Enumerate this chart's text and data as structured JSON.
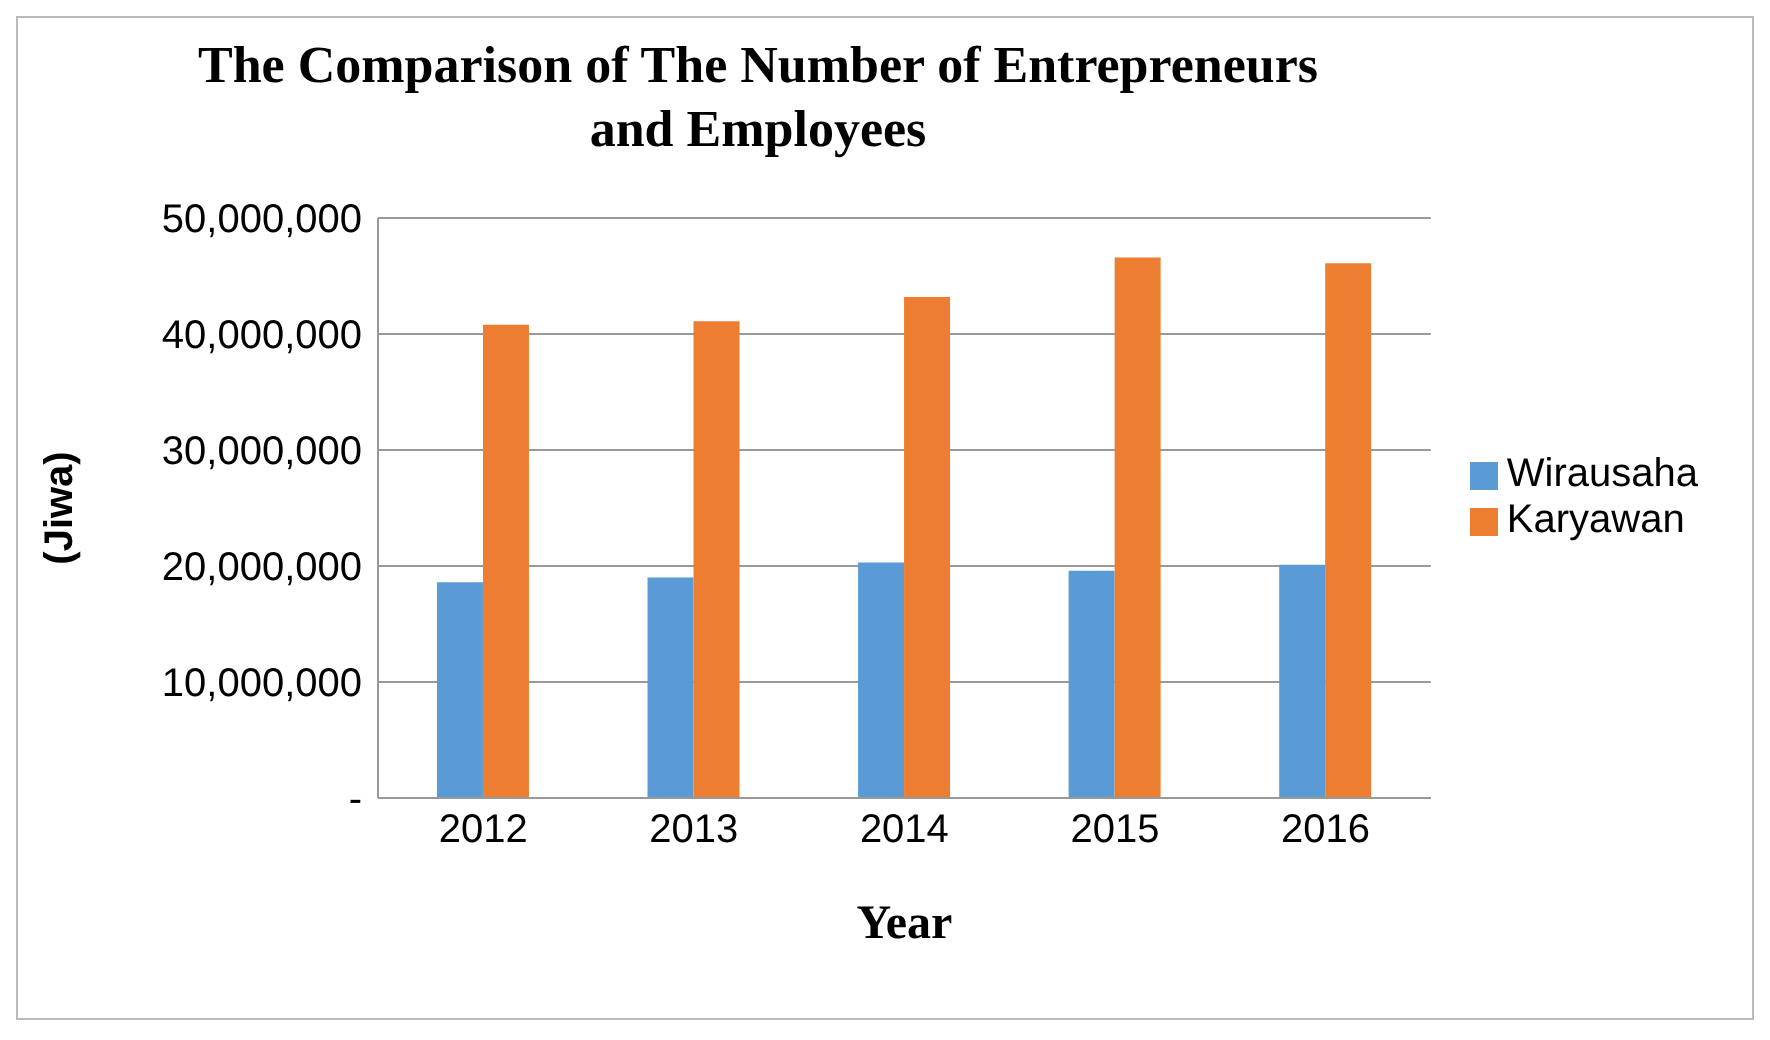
{
  "chart_data": {
    "type": "bar",
    "title": "The Comparison of The Number of Entrepreneurs and Employees",
    "xlabel": "Year",
    "ylabel": "(Jiwa)",
    "categories": [
      "2012",
      "2013",
      "2014",
      "2015",
      "2016"
    ],
    "series": [
      {
        "name": "Wirausaha",
        "color": "#5b9bd5",
        "values": [
          18600000,
          19000000,
          20300000,
          19600000,
          20100000
        ]
      },
      {
        "name": "Karyawan",
        "color": "#ed7d31",
        "values": [
          40800000,
          41100000,
          43200000,
          46600000,
          46100000
        ]
      }
    ],
    "ylim": [
      0,
      50000000
    ],
    "yticks": [
      {
        "value": 0,
        "label": "-"
      },
      {
        "value": 10000000,
        "label": "10,000,000"
      },
      {
        "value": 20000000,
        "label": "20,000,000"
      },
      {
        "value": 30000000,
        "label": "30,000,000"
      },
      {
        "value": 40000000,
        "label": "40,000,000"
      },
      {
        "value": 50000000,
        "label": "50,000,000"
      }
    ],
    "grid": "y",
    "legend": "right"
  }
}
